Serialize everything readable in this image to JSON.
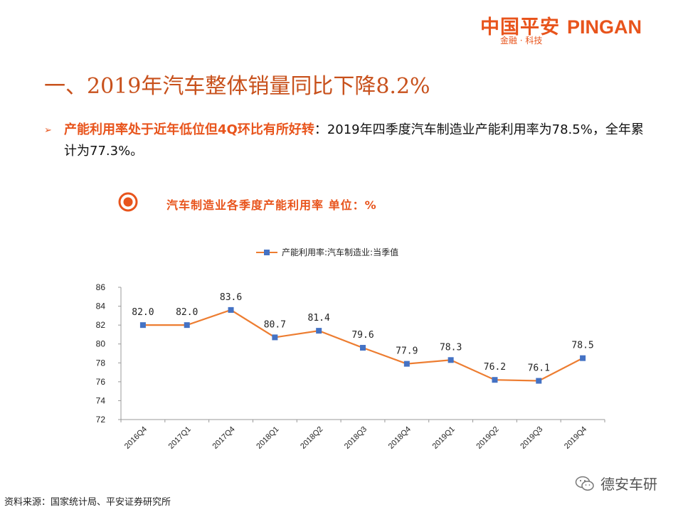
{
  "header": {
    "logo_cn": "中国平安",
    "logo_en": "PINGAN",
    "logo_sub": "金融 · 科技"
  },
  "title": "一、2019年汽车整体销量同比下降8.2%",
  "bullet": {
    "highlight": "产能利用率处于近年低位但4Q环比有所好转",
    "text": "：2019年四季度汽车制造业产能利用率为78.5%，全年累计为77.3%。"
  },
  "chart_title": "汽车制造业各季度产能利用率 单位：%",
  "chart_data": {
    "type": "line",
    "title": "汽车制造业各季度产能利用率 单位：%",
    "categories": [
      "2016Q4",
      "2017Q1",
      "2017Q4",
      "2018Q1",
      "2018Q2",
      "2018Q3",
      "2018Q4",
      "2019Q1",
      "2019Q2",
      "2019Q3",
      "2019Q4"
    ],
    "series": [
      {
        "name": "产能利用率:汽车制造业:当季值",
        "values": [
          82.0,
          82.0,
          83.6,
          80.7,
          81.4,
          79.6,
          77.9,
          78.3,
          76.2,
          76.1,
          78.5
        ],
        "labels": [
          "82.0",
          "82.0",
          "83.6",
          "80.7",
          "81.4",
          "79.6",
          "77.9",
          "78.3",
          "76.2",
          "76.1",
          "78.5"
        ]
      }
    ],
    "ylim": [
      72,
      86
    ],
    "yticks": [
      "72",
      "74",
      "76",
      "78",
      "80",
      "82",
      "84",
      "86"
    ],
    "legend_position": "top",
    "grid": false,
    "xlabel": "",
    "ylabel": ""
  },
  "source": "资料来源：国家统计局、平安证券研究所",
  "watermark": "德安车研",
  "colors": {
    "accent": "#e8541c",
    "title": "#c8511c",
    "line": "#ed7d31",
    "marker": "#4472c4"
  }
}
